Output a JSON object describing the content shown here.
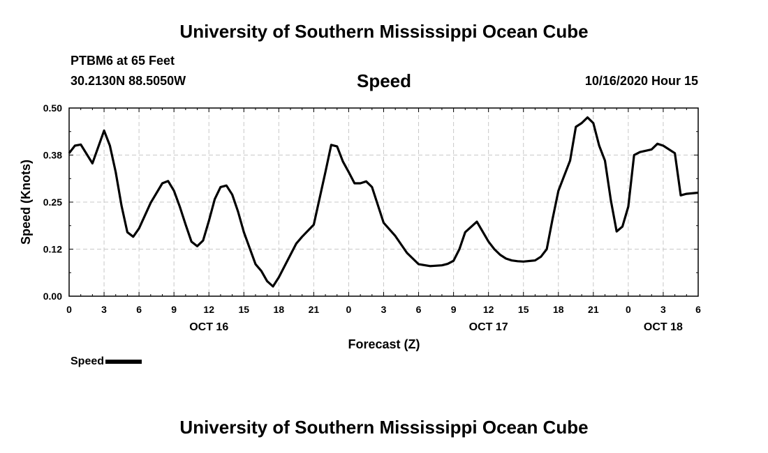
{
  "header": {
    "top_title": "University of Southern Mississippi Ocean Cube",
    "station": "PTBM6 at 65 Feet",
    "coords": "30.2130N 88.5050W",
    "issued": "10/16/2020 Hour 15",
    "bottom_title": "University of Southern Mississippi Ocean Cube"
  },
  "legend": {
    "label": "Speed"
  },
  "chart_data": {
    "type": "line",
    "title": "Speed",
    "xlabel": "Forecast (Z)",
    "ylabel": "Speed (Knots)",
    "ylim": [
      0,
      0.5
    ],
    "yticks": [
      "0.00",
      "0.12",
      "0.25",
      "0.38",
      "0.50"
    ],
    "xlim": [
      0,
      54
    ],
    "xtick_labels": [
      "0",
      "3",
      "6",
      "9",
      "12",
      "15",
      "18",
      "21",
      "0",
      "3",
      "6",
      "9",
      "12",
      "15",
      "18",
      "21",
      "0",
      "3",
      "6"
    ],
    "date_labels": [
      {
        "label": "OCT 16",
        "hour": 12
      },
      {
        "label": "OCT 17",
        "hour": 36
      },
      {
        "label": "OCT 18",
        "hour": 51
      }
    ],
    "grid": true,
    "line_color": "#000000",
    "series": [
      {
        "name": "Speed",
        "x": [
          0,
          0.5,
          1,
          2,
          3,
          3.5,
          4,
          4.5,
          5,
          5.5,
          6,
          7,
          8,
          8.5,
          9,
          9.5,
          10,
          10.5,
          11,
          11.5,
          12,
          12.5,
          13,
          13.5,
          14,
          14.5,
          15,
          16,
          16.5,
          17,
          17.5,
          18,
          19,
          19.5,
          20,
          21,
          22,
          22.5,
          23,
          23.5,
          24,
          24.5,
          25,
          25.5,
          26,
          27,
          28,
          29,
          30,
          31,
          32,
          32.5,
          33,
          33.5,
          34,
          35,
          36,
          36.5,
          37,
          37.5,
          38,
          38.5,
          39,
          40,
          40.5,
          41,
          41.5,
          42,
          42.5,
          43,
          43.5,
          44,
          44.5,
          45,
          45.5,
          46,
          46.5,
          47,
          47.5,
          48,
          48.5,
          49,
          50,
          50.5,
          51,
          52,
          52.5,
          53,
          54
        ],
        "values": [
          0.38,
          0.4,
          0.403,
          0.353,
          0.44,
          0.4,
          0.33,
          0.24,
          0.17,
          0.158,
          0.18,
          0.248,
          0.3,
          0.306,
          0.28,
          0.238,
          0.19,
          0.145,
          0.133,
          0.148,
          0.2,
          0.258,
          0.29,
          0.294,
          0.27,
          0.225,
          0.17,
          0.085,
          0.067,
          0.04,
          0.026,
          0.05,
          0.11,
          0.14,
          0.158,
          0.19,
          0.33,
          0.402,
          0.398,
          0.358,
          0.33,
          0.3,
          0.3,
          0.305,
          0.29,
          0.195,
          0.16,
          0.115,
          0.085,
          0.08,
          0.082,
          0.086,
          0.094,
          0.125,
          0.17,
          0.198,
          0.145,
          0.125,
          0.11,
          0.1,
          0.095,
          0.093,
          0.092,
          0.095,
          0.105,
          0.125,
          0.205,
          0.28,
          0.32,
          0.36,
          0.45,
          0.46,
          0.475,
          0.46,
          0.4,
          0.36,
          0.255,
          0.172,
          0.185,
          0.238,
          0.375,
          0.383,
          0.39,
          0.405,
          0.4,
          0.38,
          0.268,
          0.272,
          0.275
        ]
      }
    ]
  }
}
